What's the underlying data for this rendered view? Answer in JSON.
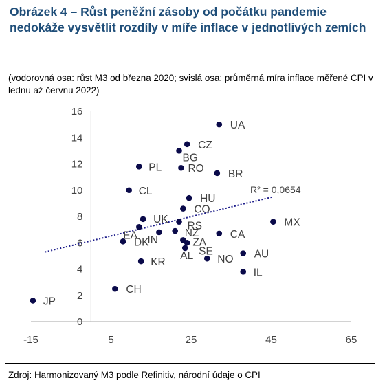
{
  "title": "Obrázek 4 – Růst peněžní zásoby od počátku pandemie nedokáže vysvětlit rozdíly v míře inflace v jednotlivých zemích",
  "subtitle": "(vodorovná osa: růst M3 od března 2020; svislá osa: průměrná míra inflace měřené CPI v lednu až červnu 2022)",
  "source": "Zdroj: Harmonizovaný M3 podle Refinitiv, národní údaje o CPI",
  "colors": {
    "title": "#1f4e79",
    "points": "#0a0a4a",
    "trendline": "#1c1c8a",
    "axis": "#a6a6a6"
  },
  "chart_data": {
    "type": "scatter",
    "xlim": [
      -15,
      65
    ],
    "ylim": [
      0,
      16
    ],
    "x_ticks": [
      "-15",
      "5",
      "25",
      "45",
      "65"
    ],
    "y_ticks": [
      "0",
      "2",
      "4",
      "6",
      "8",
      "10",
      "12",
      "14",
      "16"
    ],
    "x_tick_values": [
      -15,
      5,
      25,
      45,
      65
    ],
    "y_tick_values": [
      0,
      2,
      4,
      6,
      8,
      10,
      12,
      14,
      16
    ],
    "grid": false,
    "trendline": {
      "type": "linear",
      "label": "R² = 0,0654",
      "x0": -11.5,
      "y0": 5.3,
      "x1": 45.5,
      "y1": 9.5
    },
    "points": [
      {
        "label": "UA",
        "x": 32.0,
        "y": 15.0
      },
      {
        "label": "CZ",
        "x": 24.0,
        "y": 13.5
      },
      {
        "label": "BG",
        "x": 22.0,
        "y": 13.0
      },
      {
        "label": "PL",
        "x": 12.0,
        "y": 11.8
      },
      {
        "label": "RO",
        "x": 22.5,
        "y": 11.7
      },
      {
        "label": "BR",
        "x": 31.5,
        "y": 11.3
      },
      {
        "label": "CL",
        "x": 9.5,
        "y": 10.0
      },
      {
        "label": "HU",
        "x": 24.5,
        "y": 9.4
      },
      {
        "label": "CO",
        "x": 23.0,
        "y": 8.6
      },
      {
        "label": "MX",
        "x": 45.5,
        "y": 7.6
      },
      {
        "label": "UK",
        "x": 13.0,
        "y": 7.8
      },
      {
        "label": "RS",
        "x": 22.0,
        "y": 7.6
      },
      {
        "label": "EA",
        "x": 12.0,
        "y": 7.2
      },
      {
        "label": "IN",
        "x": 17.0,
        "y": 6.8
      },
      {
        "label": "NZ",
        "x": 21.0,
        "y": 6.9
      },
      {
        "label": "CA",
        "x": 32.0,
        "y": 6.7
      },
      {
        "label": "DK",
        "x": 8.0,
        "y": 6.1
      },
      {
        "label": "ZA",
        "x": 23.0,
        "y": 6.2
      },
      {
        "label": "SE",
        "x": 24.0,
        "y": 6.0
      },
      {
        "label": "AL",
        "x": 23.5,
        "y": 5.6
      },
      {
        "label": "AU",
        "x": 38.0,
        "y": 5.2
      },
      {
        "label": "NO",
        "x": 29.0,
        "y": 4.8
      },
      {
        "label": "KR",
        "x": 12.5,
        "y": 4.6
      },
      {
        "label": "IL",
        "x": 38.0,
        "y": 3.8
      },
      {
        "label": "CH",
        "x": 6.0,
        "y": 2.5
      },
      {
        "label": "JP",
        "x": -14.5,
        "y": 1.6
      }
    ]
  }
}
